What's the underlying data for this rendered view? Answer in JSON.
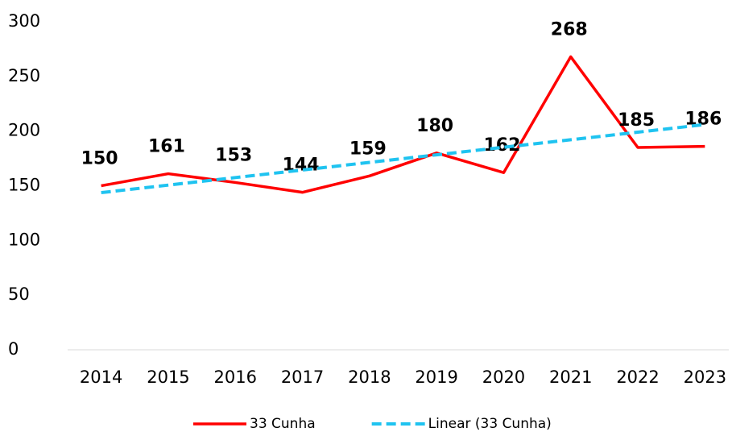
{
  "chart_data": {
    "type": "line",
    "categories": [
      "2014",
      "2015",
      "2016",
      "2017",
      "2018",
      "2019",
      "2020",
      "2021",
      "2022",
      "2023"
    ],
    "series": [
      {
        "name": "33 Cunha",
        "color": "#ff0000",
        "values": [
          150,
          161,
          153,
          144,
          159,
          180,
          162,
          268,
          185,
          186
        ],
        "data_labels": true
      },
      {
        "name": "Linear (33 Cunha)",
        "color": "#1fc3f0",
        "dashed": true,
        "values": [
          143.7,
          150.6,
          157.5,
          164.4,
          171.4,
          178.3,
          185.2,
          192.1,
          199.0,
          206.0
        ]
      }
    ],
    "ylim": [
      0,
      300
    ],
    "yticks": [
      0,
      50,
      100,
      150,
      200,
      250,
      300
    ],
    "grid": false,
    "legend": "bottom"
  }
}
